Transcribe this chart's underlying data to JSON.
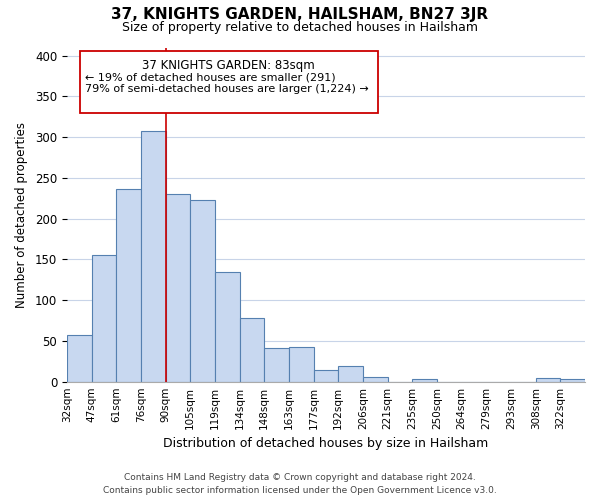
{
  "title": "37, KNIGHTS GARDEN, HAILSHAM, BN27 3JR",
  "subtitle": "Size of property relative to detached houses in Hailsham",
  "xlabel": "Distribution of detached houses by size in Hailsham",
  "ylabel": "Number of detached properties",
  "categories": [
    "32sqm",
    "47sqm",
    "61sqm",
    "76sqm",
    "90sqm",
    "105sqm",
    "119sqm",
    "134sqm",
    "148sqm",
    "163sqm",
    "177sqm",
    "192sqm",
    "206sqm",
    "221sqm",
    "235sqm",
    "250sqm",
    "264sqm",
    "279sqm",
    "293sqm",
    "308sqm",
    "322sqm"
  ],
  "values": [
    57,
    155,
    237,
    307,
    230,
    223,
    135,
    78,
    41,
    43,
    14,
    19,
    6,
    0,
    3,
    0,
    0,
    0,
    0,
    4,
    3
  ],
  "bar_color": "#c8d8f0",
  "bar_edge_color": "#5580b0",
  "annotation_title": "37 KNIGHTS GARDEN: 83sqm",
  "annotation_line1": "← 19% of detached houses are smaller (291)",
  "annotation_line2": "79% of semi-detached houses are larger (1,224) →",
  "vline_color": "#cc0000",
  "ylim": [
    0,
    410
  ],
  "yticks": [
    0,
    50,
    100,
    150,
    200,
    250,
    300,
    350,
    400
  ],
  "footer_line1": "Contains HM Land Registry data © Crown copyright and database right 2024.",
  "footer_line2": "Contains public sector information licensed under the Open Government Licence v3.0.",
  "bg_color": "#ffffff",
  "grid_color": "#c8d4e8"
}
